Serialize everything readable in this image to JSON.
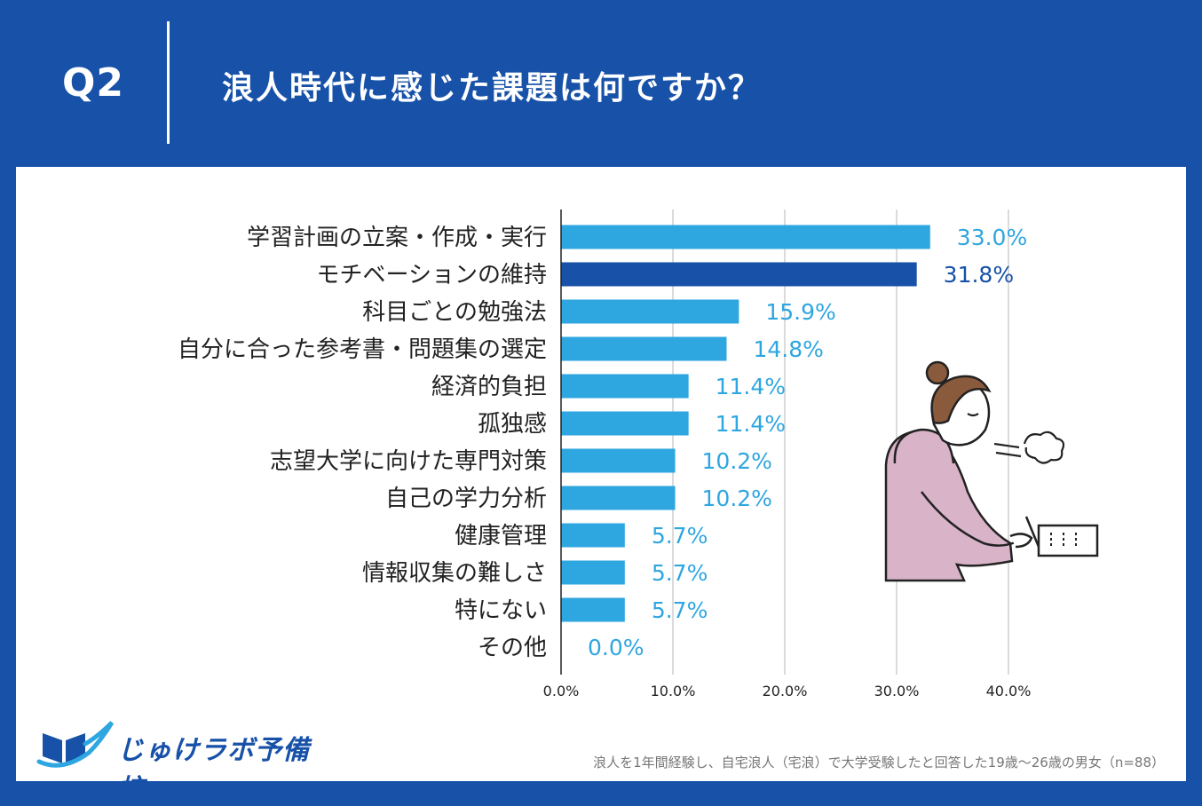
{
  "header": {
    "q_label": "Q2",
    "question": "浪人時代に感じた課題は何ですか？"
  },
  "colors": {
    "background": "#1751a8",
    "bar_default": "#2ea6e0",
    "bar_highlight": "#1751a8",
    "grid": "#cfcfcf",
    "illustration_hoodie": "#d9b3c8"
  },
  "chart_data": {
    "type": "bar",
    "orientation": "horizontal",
    "categories": [
      "学習計画の立案・作成・実行",
      "モチベーションの維持",
      "科目ごとの勉強法",
      "自分に合った参考書・問題集の選定",
      "経済的負担",
      "孤独感",
      "志望大学に向けた専門対策",
      "自己の学力分析",
      "健康管理",
      "情報収集の難しさ",
      "特にない",
      "その他"
    ],
    "values": [
      33.0,
      31.8,
      15.9,
      14.8,
      11.4,
      11.4,
      10.2,
      10.2,
      5.7,
      5.7,
      5.7,
      0.0
    ],
    "value_labels": [
      "33.0%",
      "31.8%",
      "15.9%",
      "14.8%",
      "11.4%",
      "11.4%",
      "10.2%",
      "10.2%",
      "5.7%",
      "5.7%",
      "5.7%",
      "0.0%"
    ],
    "highlight_index": 1,
    "xlim": [
      0,
      40
    ],
    "xticks": [
      "0.0%",
      "10.0%",
      "20.0%",
      "30.0%",
      "40.0%"
    ],
    "xtick_values": [
      0,
      10,
      20,
      30,
      40
    ],
    "grid": true
  },
  "logo": {
    "text": "じゅけラボ予備校",
    "icon": "open-book-swoosh-icon"
  },
  "footnote": "浪人を1年間経験し、自宅浪人（宅浪）で大学受験したと回答した19歳〜26歳の男女（n=88）",
  "illustration": {
    "icon": "stressed-student-writing-illustration"
  }
}
